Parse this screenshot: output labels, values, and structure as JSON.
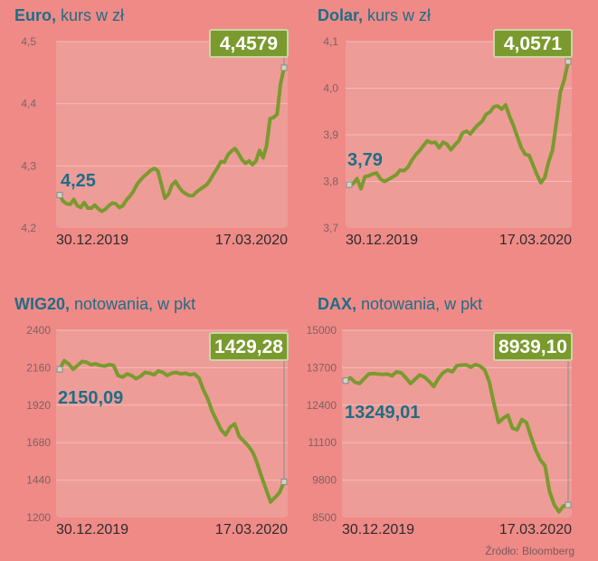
{
  "source": "Źródło: Bloomberg",
  "colors": {
    "background": "#f08a87",
    "plot_bg": "#ee9c98",
    "line": "#7a9a2e",
    "title_bold": "#1e6e86",
    "label_blue": "#1e6e86",
    "badge_bg": "#7a9a2e",
    "badge_text": "#ffffff",
    "tick_text": "#7d6262",
    "date_text": "#2c2c2c"
  },
  "chart_data": [
    {
      "type": "line",
      "title_bold": "Euro,",
      "title_rest": " kurs w zł",
      "ylim": [
        4.2,
        4.5
      ],
      "yticks": [
        4.2,
        4.3,
        4.4,
        4.5
      ],
      "ytick_labels": [
        "4,2",
        "4,3",
        "4,4",
        "4,5"
      ],
      "x_labels": [
        "30.12.2019",
        "17.03.2020"
      ],
      "start_label": "4,25",
      "end_label": "4,4579",
      "start_value": 4.25,
      "end_value": 4.4579,
      "series": [
        {
          "values": [
            4.253,
            4.243,
            4.239,
            4.238,
            4.246,
            4.236,
            4.233,
            4.241,
            4.232,
            4.232,
            4.237,
            4.231,
            4.227,
            4.23,
            4.236,
            4.24,
            4.239,
            4.233,
            4.236,
            4.245,
            4.251,
            4.259,
            4.27,
            4.277,
            4.283,
            4.288,
            4.293,
            4.296,
            4.292,
            4.27,
            4.248,
            4.254,
            4.269,
            4.275,
            4.266,
            4.259,
            4.255,
            4.252,
            4.252,
            4.258,
            4.262,
            4.266,
            4.27,
            4.278,
            4.288,
            4.297,
            4.307,
            4.306,
            4.318,
            4.324,
            4.328,
            4.32,
            4.31,
            4.304,
            4.308,
            4.302,
            4.308,
            4.325,
            4.313,
            4.332,
            4.376,
            4.378,
            4.383,
            4.432,
            4.4579
          ]
        }
      ]
    },
    {
      "type": "line",
      "title_bold": "Dolar,",
      "title_rest": " kurs w zł",
      "ylim": [
        3.7,
        4.1
      ],
      "yticks": [
        3.7,
        3.8,
        3.9,
        4.0,
        4.1
      ],
      "ytick_labels": [
        "3,7",
        "3,8",
        "3,9",
        "4,0",
        "4,1"
      ],
      "x_labels": [
        "30.12.2019",
        "17.03.2020"
      ],
      "start_label": "3,79",
      "end_label": "4,0571",
      "start_value": 3.79,
      "end_value": 4.0571,
      "series": [
        {
          "values": [
            3.793,
            3.795,
            3.806,
            3.784,
            3.81,
            3.812,
            3.816,
            3.818,
            3.805,
            3.8,
            3.804,
            3.809,
            3.814,
            3.824,
            3.823,
            3.83,
            3.845,
            3.857,
            3.866,
            3.877,
            3.887,
            3.883,
            3.884,
            3.872,
            3.884,
            3.88,
            3.868,
            3.878,
            3.887,
            3.904,
            3.908,
            3.902,
            3.913,
            3.922,
            3.929,
            3.944,
            3.949,
            3.96,
            3.962,
            3.955,
            3.964,
            3.94,
            3.92,
            3.896,
            3.873,
            3.858,
            3.856,
            3.836,
            3.815,
            3.797,
            3.808,
            3.842,
            3.867,
            3.926,
            3.992,
            4.018,
            4.0571
          ]
        }
      ]
    },
    {
      "type": "line",
      "title_bold": "WIG20,",
      "title_rest": " notowania, w pkt",
      "ylim": [
        1200,
        2400
      ],
      "yticks": [
        1200,
        1440,
        1680,
        1920,
        2160,
        2400
      ],
      "ytick_labels": [
        "1200",
        "1440",
        "1680",
        "1920",
        "2160",
        "2400"
      ],
      "x_labels": [
        "30.12.2019",
        "17.03.2020"
      ],
      "start_label": "2150,09",
      "end_label": "1429,28",
      "start_value": 2150.09,
      "end_value": 1429.28,
      "series": [
        {
          "values": [
            2150,
            2205,
            2185,
            2150,
            2175,
            2200,
            2195,
            2180,
            2185,
            2175,
            2170,
            2180,
            2175,
            2110,
            2100,
            2120,
            2110,
            2090,
            2105,
            2130,
            2125,
            2115,
            2140,
            2130,
            2110,
            2125,
            2130,
            2120,
            2125,
            2115,
            2120,
            2095,
            2020,
            1960,
            1880,
            1820,
            1760,
            1730,
            1780,
            1800,
            1720,
            1690,
            1660,
            1620,
            1550,
            1460,
            1380,
            1300,
            1330,
            1360,
            1429
          ]
        }
      ]
    },
    {
      "type": "line",
      "title_bold": "DAX,",
      "title_rest": " notowania, w pkt",
      "ylim": [
        8500,
        15000
      ],
      "yticks": [
        8500,
        9800,
        11100,
        12400,
        13700,
        15000
      ],
      "ytick_labels": [
        "8500",
        "9800",
        "11100",
        "12400",
        "13700",
        "15000"
      ],
      "x_labels": [
        "30.12.2019",
        "17.03.2020"
      ],
      "start_label": "13249,01",
      "end_label": "8939,10",
      "start_value": 13249.01,
      "end_value": 8939.1,
      "series": [
        {
          "values": [
            13249,
            13350,
            13200,
            13150,
            13320,
            13480,
            13500,
            13480,
            13470,
            13480,
            13420,
            13560,
            13520,
            13350,
            13150,
            13300,
            13450,
            13380,
            13230,
            13050,
            13320,
            13520,
            13620,
            13560,
            13770,
            13790,
            13800,
            13720,
            13810,
            13760,
            13620,
            13200,
            12450,
            11800,
            11950,
            12050,
            11600,
            11550,
            11900,
            11800,
            11300,
            10850,
            10500,
            10300,
            9400,
            8950,
            8700,
            8900,
            8939
          ]
        }
      ]
    }
  ]
}
